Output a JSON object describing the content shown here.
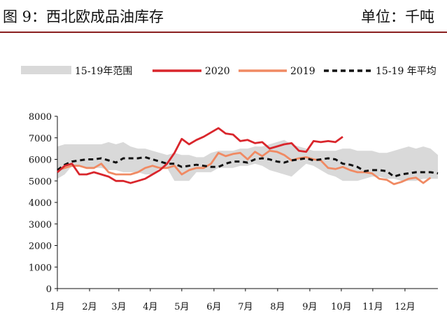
{
  "header": {
    "title": "图 9：西北欧成品油库存",
    "unit": "单位：千吨"
  },
  "chart_data": {
    "type": "line",
    "title": "图 9：西北欧成品油库存",
    "ylabel": "",
    "xlabel": "",
    "ylim": [
      0,
      8000
    ],
    "yticks": [
      0,
      1000,
      2000,
      3000,
      4000,
      5000,
      6000,
      7000,
      8000
    ],
    "xlim": [
      1,
      53
    ],
    "xticks": [
      {
        "label": "1月",
        "week": 1
      },
      {
        "label": "2月",
        "week": 5.4
      },
      {
        "label": "3月",
        "week": 9.4
      },
      {
        "label": "4月",
        "week": 13.7
      },
      {
        "label": "5月",
        "week": 18
      },
      {
        "label": "6月",
        "week": 22.4
      },
      {
        "label": "7月",
        "week": 26.7
      },
      {
        "label": "8月",
        "week": 31.1
      },
      {
        "label": "9月",
        "week": 35.5
      },
      {
        "label": "10月",
        "week": 39.8
      },
      {
        "label": "11月",
        "week": 44.1
      },
      {
        "label": "12月",
        "week": 48.5
      }
    ],
    "legend_position": "top",
    "grid": false,
    "colors": {
      "range": "#d9d9d9",
      "s2020": "#d9262c",
      "s2019": "#f08a63",
      "avg": "#111111"
    },
    "series": [
      {
        "name": "15-19年范围",
        "kind": "band",
        "low": [
          5100,
          5300,
          5700,
          5700,
          5600,
          5600,
          5600,
          5500,
          5500,
          5400,
          5400,
          5400,
          5300,
          5300,
          5600,
          5600,
          5000,
          5000,
          5000,
          5400,
          5400,
          5400,
          5600,
          5600,
          5600,
          5700,
          5700,
          5800,
          5700,
          5500,
          5400,
          5300,
          5200,
          5500,
          5800,
          5700,
          5500,
          5300,
          5200,
          5000,
          5000,
          5000,
          5100,
          5200,
          5200,
          5100,
          5100,
          5000,
          5000,
          5000,
          5100,
          5100,
          5100
        ],
        "high": [
          6600,
          6700,
          6700,
          6700,
          6700,
          6700,
          6700,
          6800,
          6700,
          6800,
          6600,
          6500,
          6500,
          6400,
          6300,
          6200,
          6300,
          6200,
          6200,
          6100,
          6100,
          6300,
          6400,
          6400,
          6400,
          6500,
          6500,
          6600,
          6600,
          6700,
          6800,
          6900,
          6700,
          6600,
          6500,
          6400,
          6400,
          6400,
          6400,
          6500,
          6500,
          6400,
          6400,
          6400,
          6300,
          6300,
          6400,
          6500,
          6600,
          6500,
          6600,
          6500,
          6200
        ]
      },
      {
        "name": "2020",
        "values": [
          5400,
          5700,
          5800,
          5300,
          5300,
          5400,
          5300,
          5200,
          5000,
          5000,
          4900,
          5000,
          5100,
          5300,
          5500,
          5800,
          6300,
          6950,
          6700,
          6900,
          7050,
          7250,
          7450,
          7200,
          7150,
          6850,
          6900,
          6750,
          6800,
          6500,
          6600,
          6700,
          6750,
          6400,
          6350,
          6850,
          6800,
          6850,
          6800,
          7050
        ]
      },
      {
        "name": "2019",
        "values": [
          5500,
          5600,
          5700,
          5700,
          5600,
          5600,
          5800,
          5400,
          5300,
          5300,
          5300,
          5400,
          5600,
          5700,
          5600,
          5600,
          5700,
          5300,
          5500,
          5600,
          5600,
          5800,
          6300,
          6150,
          6250,
          6300,
          6000,
          6350,
          6150,
          6400,
          6350,
          6200,
          5950,
          6050,
          6100,
          6000,
          5950,
          5600,
          5550,
          5650,
          5500,
          5400,
          5400,
          5350,
          5100,
          5050,
          4850,
          4950,
          5100,
          5150,
          4900,
          5150
        ]
      },
      {
        "name": "15-19 年平均",
        "values": [
          5500,
          5750,
          5900,
          5950,
          6000,
          6000,
          6050,
          5950,
          5850,
          6050,
          6050,
          6050,
          6100,
          6000,
          5900,
          5800,
          5800,
          5650,
          5700,
          5750,
          5700,
          5650,
          5650,
          5800,
          5900,
          5900,
          5850,
          6000,
          6050,
          6000,
          5900,
          5850,
          5950,
          6000,
          6050,
          5950,
          6000,
          6050,
          6000,
          5800,
          5750,
          5650,
          5450,
          5500,
          5500,
          5450,
          5200,
          5300,
          5350,
          5400,
          5400,
          5400,
          5350
        ]
      }
    ]
  }
}
